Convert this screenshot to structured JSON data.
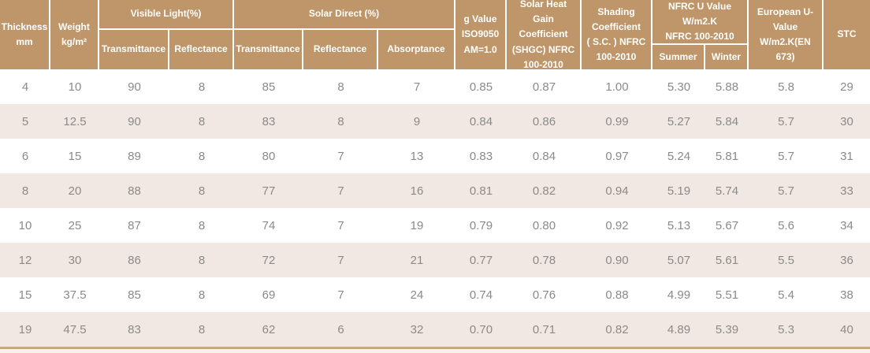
{
  "colors": {
    "header_background": "#bf9669",
    "header_text": "#ffffff",
    "row_alt_background": "#f2e8e3",
    "row_background": "#ffffff",
    "body_text": "#8a8a8a",
    "bottom_rule": "#c9a97b",
    "bottom_strip": "#f7f0ea"
  },
  "table": {
    "header": {
      "thickness": "Thickness\nmm",
      "weight": "Weight\nkg/m²",
      "visible_light": "Visible Light(%)",
      "vl_transmittance": "Transmittance",
      "vl_reflectance": "Reflectance",
      "solar_direct": "Solar Direct (%)",
      "sd_transmittance": "Transmittance",
      "sd_reflectance": "Reflectance",
      "sd_absorptance": "Absorptance",
      "g_value": "g Value\nISO9050\nAM=1.0",
      "shgc": "Solar Heat Gain\nCoefficient\n(SHGC) NFRC\n100-2010",
      "shading": "Shading\nCoefficient\n( S.C. ) NFRC\n100-2010",
      "nfrc_u": "NFRC U Value\nW/m2.K\nNFRC 100-2010",
      "summer": "Summer",
      "winter": "Winter",
      "european_u": "European U-\nValue\nW/m2.K(EN\n673)",
      "stc": "STC"
    },
    "rows": [
      [
        "4",
        "10",
        "90",
        "8",
        "85",
        "8",
        "7",
        "0.85",
        "0.87",
        "1.00",
        "5.30",
        "5.88",
        "5.8",
        "29"
      ],
      [
        "5",
        "12.5",
        "90",
        "8",
        "83",
        "8",
        "9",
        "0.84",
        "0.86",
        "0.99",
        "5.27",
        "5.84",
        "5.7",
        "30"
      ],
      [
        "6",
        "15",
        "89",
        "8",
        "80",
        "7",
        "13",
        "0.83",
        "0.84",
        "0.97",
        "5.24",
        "5.81",
        "5.7",
        "31"
      ],
      [
        "8",
        "20",
        "88",
        "8",
        "77",
        "7",
        "16",
        "0.81",
        "0.82",
        "0.94",
        "5.19",
        "5.74",
        "5.7",
        "33"
      ],
      [
        "10",
        "25",
        "87",
        "8",
        "74",
        "7",
        "19",
        "0.79",
        "0.80",
        "0.92",
        "5.13",
        "5.67",
        "5.6",
        "34"
      ],
      [
        "12",
        "30",
        "86",
        "8",
        "72",
        "7",
        "21",
        "0.77",
        "0.78",
        "0.90",
        "5.07",
        "5.61",
        "5.5",
        "36"
      ],
      [
        "15",
        "37.5",
        "85",
        "8",
        "69",
        "7",
        "24",
        "0.74",
        "0.76",
        "0.88",
        "4.99",
        "5.51",
        "5.4",
        "38"
      ],
      [
        "19",
        "47.5",
        "83",
        "8",
        "62",
        "6",
        "32",
        "0.70",
        "0.71",
        "0.82",
        "4.89",
        "5.39",
        "5.3",
        "40"
      ]
    ]
  }
}
